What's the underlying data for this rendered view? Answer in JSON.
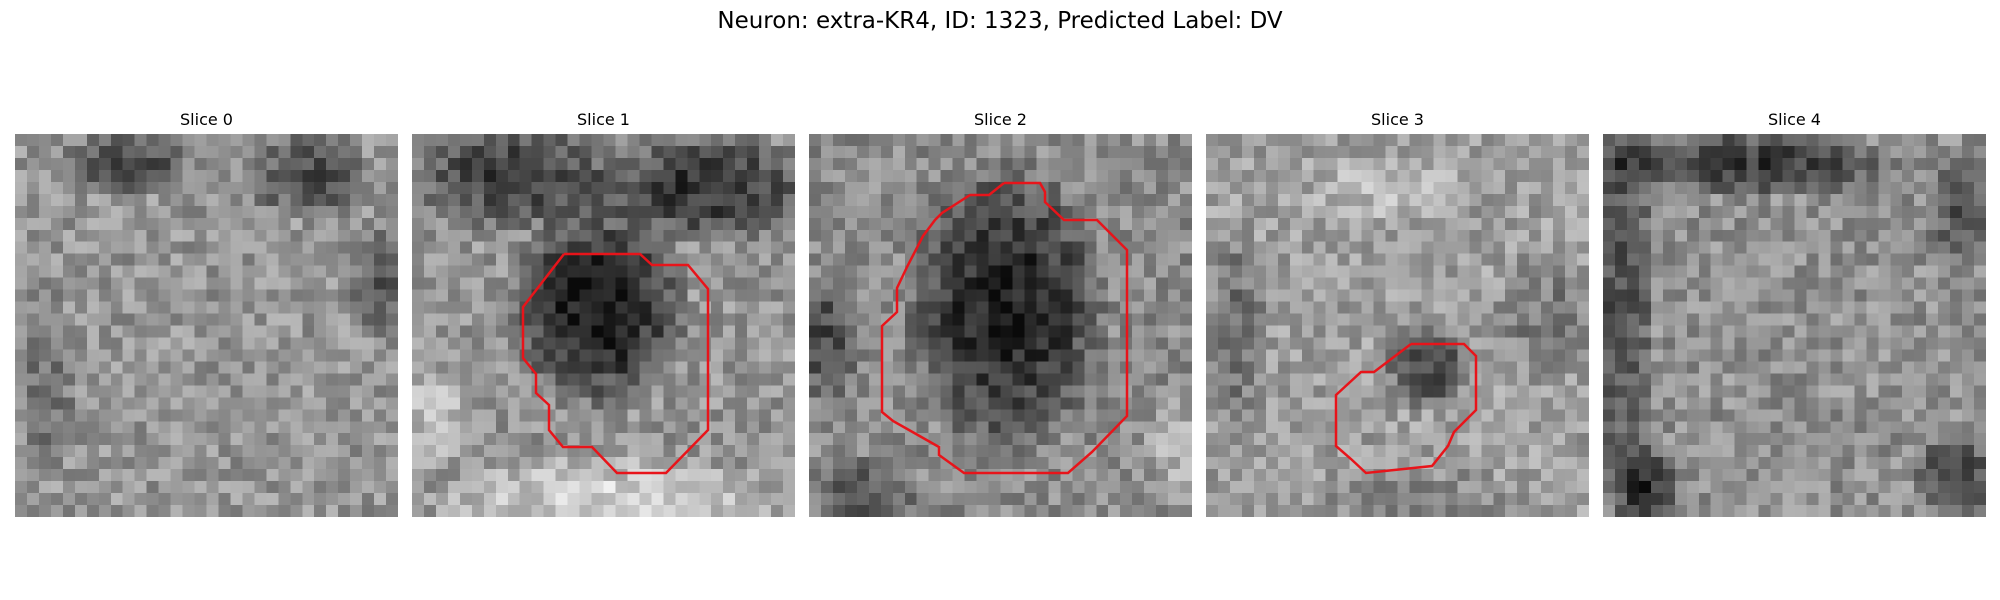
{
  "figure": {
    "title": "Neuron: extra-KR4, ID: 1323, Predicted Label: DV"
  },
  "colors": {
    "contour": "#e8141a",
    "background": "#ffffff"
  },
  "panels": [
    {
      "title": "Slice 0",
      "has_contour": false
    },
    {
      "title": "Slice 1",
      "has_contour": true
    },
    {
      "title": "Slice 2",
      "has_contour": true
    },
    {
      "title": "Slice 3",
      "has_contour": true
    },
    {
      "title": "Slice 4",
      "has_contour": false
    }
  ]
}
